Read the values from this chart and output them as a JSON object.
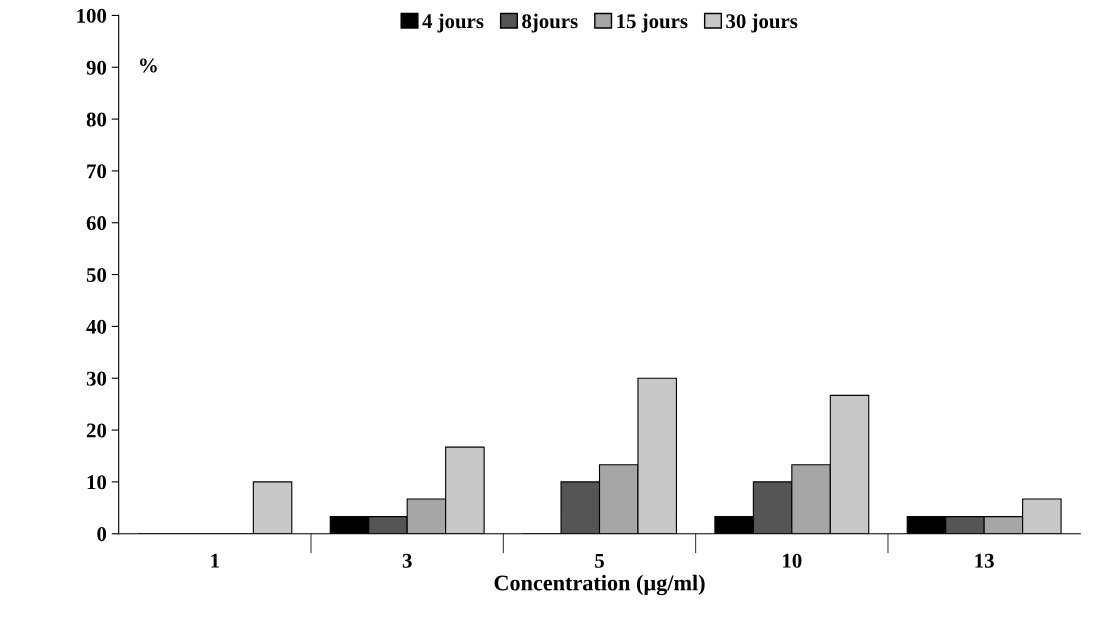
{
  "chart_data": {
    "type": "bar",
    "xlabel": "Concentration (µg/ml)",
    "ylabel": "%",
    "categories": [
      "1",
      "3",
      "5",
      "10",
      "13"
    ],
    "series": [
      {
        "name": "4 jours",
        "color": "#000000",
        "values": [
          0,
          3.3,
          0,
          3.3,
          3.3
        ]
      },
      {
        "name": "8jours",
        "color": "#555555",
        "values": [
          0,
          3.3,
          10,
          10,
          3.3
        ]
      },
      {
        "name": "15 jours",
        "color": "#a6a6a6",
        "values": [
          0,
          6.7,
          13.3,
          13.3,
          3.3
        ]
      },
      {
        "name": "30 jours",
        "color": "#c8c8c8",
        "values": [
          10,
          16.7,
          30,
          26.7,
          6.7
        ]
      }
    ],
    "ylim": [
      0,
      100
    ],
    "yticks": [
      0,
      10,
      20,
      30,
      40,
      50,
      60,
      70,
      80,
      90,
      100
    ],
    "grid": false,
    "legend": "top"
  }
}
